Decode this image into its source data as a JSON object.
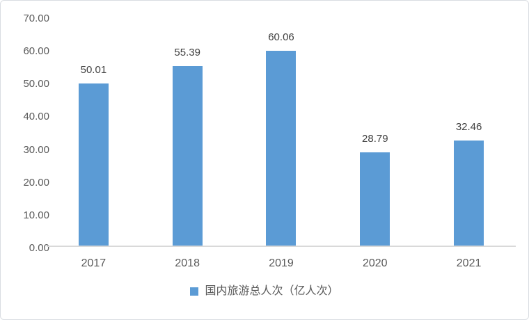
{
  "chart_data": {
    "type": "bar",
    "title": "",
    "categories": [
      "2017",
      "2018",
      "2019",
      "2020",
      "2021"
    ],
    "values": [
      50.01,
      55.39,
      60.06,
      28.79,
      32.46
    ],
    "value_labels": [
      "50.01",
      "55.39",
      "60.06",
      "28.79",
      "32.46"
    ],
    "series_name": "国内旅游总人次（亿人次）",
    "xlabel": "",
    "ylabel": "",
    "ylim": [
      0,
      70
    ],
    "ytick_interval": 10,
    "yticks": [
      "70.00",
      "60.00",
      "50.00",
      "40.00",
      "30.00",
      "20.00",
      "10.00",
      "0.00"
    ],
    "grid": false,
    "legend_position": "bottom",
    "bar_color": "#5b9bd5",
    "axis_line_color": "#d9d9d9",
    "tick_label_color": "#595959",
    "data_label_color": "#404040",
    "frame_border_color": "#d9dce1",
    "background_color": "#ffffff"
  }
}
